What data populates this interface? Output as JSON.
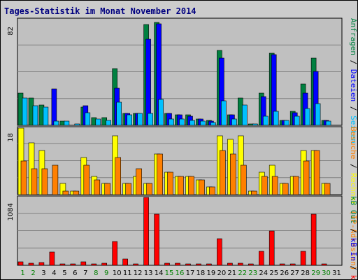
{
  "title": "Tages-Statistik im Monat November 2014",
  "colors": {
    "panel_bg": "#c0c0c0",
    "grid": "#808080",
    "weekday": "#008000",
    "anfragen": "#008040",
    "dateien": "#0000ff",
    "seiten": "#00c0ff",
    "rechner": "#ffff00",
    "besuche": "#ff8000",
    "kb_f": "#ff0000",
    "kb_in": "#0000ff",
    "kb_out": "#008040",
    "separator": "#000000"
  },
  "chart_data": {
    "type": "bar",
    "categories": [
      "1",
      "2",
      "3",
      "4",
      "5",
      "6",
      "7",
      "8",
      "9",
      "10",
      "11",
      "12",
      "13",
      "14",
      "15",
      "16",
      "17",
      "18",
      "19",
      "20",
      "21",
      "22",
      "23",
      "24",
      "25",
      "26",
      "27",
      "28",
      "29",
      "30",
      "31"
    ],
    "weekend_days": [
      "1",
      "2",
      "8",
      "9",
      "15",
      "16",
      "22",
      "23",
      "29",
      "30"
    ],
    "panels": [
      {
        "id": "hits",
        "ymax": 82,
        "ytick_label": "82",
        "series": [
          {
            "name": "Anfragen",
            "color": "#008040",
            "values": [
              25,
              21,
              16,
              0,
              3,
              0,
              14,
              6,
              6,
              44,
              9,
              9,
              78,
              80,
              9,
              8,
              8,
              5,
              4,
              58,
              8,
              21,
              1,
              25,
              56,
              4,
              11,
              32,
              52,
              4
            ]
          },
          {
            "name": "Dateien",
            "color": "#0000ff",
            "values": [
              0,
              0,
              0,
              28,
              0,
              0,
              15,
              0,
              0,
              29,
              9,
              9,
              67,
              79,
              9,
              8,
              7,
              5,
              3,
              52,
              8,
              0,
              0,
              22,
              55,
              4,
              10,
              25,
              42,
              4
            ]
          },
          {
            "name": "Seiten",
            "color": "#00c0ff",
            "values": [
              21,
              15,
              14,
              3,
              3,
              1,
              10,
              5,
              4,
              18,
              8,
              9,
              9,
              20,
              5,
              5,
              4,
              3,
              2,
              19,
              5,
              16,
              1,
              7,
              11,
              4,
              7,
              13,
              17,
              3
            ]
          }
        ]
      },
      {
        "id": "visitors",
        "ymax": 18,
        "ytick_label": "18",
        "series": [
          {
            "name": "Rechner",
            "color": "#ffff00",
            "values": [
              18,
              14,
              12,
              0,
              3,
              1,
              10,
              5,
              3,
              16,
              3,
              5,
              3,
              11,
              6,
              5,
              5,
              4,
              2,
              16,
              15,
              16,
              1,
              6,
              8,
              3,
              5,
              12,
              12,
              3
            ]
          },
          {
            "name": "Besuche",
            "color": "#ff8000",
            "values": [
              9,
              7,
              7,
              8,
              1,
              1,
              8,
              4,
              3,
              10,
              3,
              7,
              3,
              11,
              6,
              5,
              5,
              4,
              2,
              12,
              11,
              8,
              1,
              5,
              5,
              3,
              5,
              9,
              12,
              3
            ]
          }
        ]
      },
      {
        "id": "traffic",
        "ymax": 1084,
        "ytick_label": "1084",
        "series": [
          {
            "name": "kB F",
            "color": "#ff0000",
            "values": [
              60,
              35,
              40,
              210,
              15,
              10,
              55,
              15,
              30,
              375,
              95,
              25,
              1084,
              820,
              35,
              30,
              25,
              20,
              10,
              430,
              30,
              30,
              10,
              220,
              550,
              20,
              25,
              225,
              820,
              20
            ]
          },
          {
            "name": "kB In",
            "color": "#0000ff",
            "values": [
              0,
              0,
              0,
              0,
              0,
              0,
              0,
              0,
              0,
              0,
              0,
              0,
              0,
              0,
              0,
              0,
              0,
              0,
              0,
              0,
              0,
              0,
              0,
              0,
              0,
              0,
              0,
              0,
              0,
              0
            ]
          },
          {
            "name": "kB Out",
            "color": "#008040",
            "values": [
              0,
              0,
              0,
              0,
              0,
              0,
              0,
              0,
              0,
              0,
              0,
              0,
              0,
              0,
              0,
              0,
              0,
              0,
              0,
              0,
              0,
              0,
              0,
              0,
              0,
              0,
              0,
              0,
              0,
              0
            ]
          }
        ]
      }
    ]
  },
  "legend": {
    "top": [
      {
        "text": "Anfragen",
        "color": "#008040"
      },
      {
        "text": "/",
        "color": "#000000"
      },
      {
        "text": "Dateien",
        "color": "#0000ff"
      },
      {
        "text": "/",
        "color": "#000000"
      },
      {
        "text": "Seiten",
        "color": "#00c0ff"
      }
    ],
    "middle": [
      {
        "text": "Besuche",
        "color": "#ff8000"
      },
      {
        "text": "/",
        "color": "#000000"
      },
      {
        "text": "Rechner",
        "color": "#ffff00"
      },
      {
        "text": "(IP-Adressen)",
        "color": "#ff8000"
      }
    ],
    "bottom": [
      {
        "text": "kB Out",
        "color": "#008040"
      },
      {
        "text": "/",
        "color": "#000000"
      },
      {
        "text": "kB In",
        "color": "#0000ff"
      },
      {
        "text": "/",
        "color": "#000000"
      },
      {
        "text": "kB F",
        "color": "#ff0000"
      }
    ]
  }
}
